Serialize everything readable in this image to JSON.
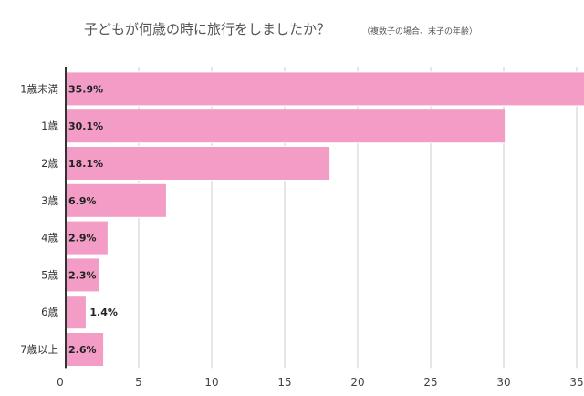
{
  "chart_data": {
    "type": "bar",
    "orientation": "horizontal",
    "title": "子どもが何歳の時に旅行をしましたか？",
    "subtitle": "（複数子の場合、末子の年齢）",
    "categories": [
      "1歳未満",
      "1歳",
      "2歳",
      "3歳",
      "4歳",
      "5歳",
      "6歳",
      "7歳以上"
    ],
    "values": [
      35.9,
      30.1,
      18.1,
      6.9,
      2.9,
      2.3,
      1.4,
      2.6
    ],
    "value_labels": [
      "35.9%",
      "30.1%",
      "18.1%",
      "6.9%",
      "2.9%",
      "2.3%",
      "1.4%",
      "2.6%"
    ],
    "xlim": [
      0,
      35
    ],
    "xticks": [
      "0",
      "5",
      "10",
      "15",
      "20",
      "25",
      "30",
      "35"
    ],
    "grid": true,
    "legend": "none",
    "bar_color": "#f29cc6",
    "bar_border_color": "#ffffff",
    "grid_color": "#cccccc",
    "axis_color": "#333333"
  }
}
